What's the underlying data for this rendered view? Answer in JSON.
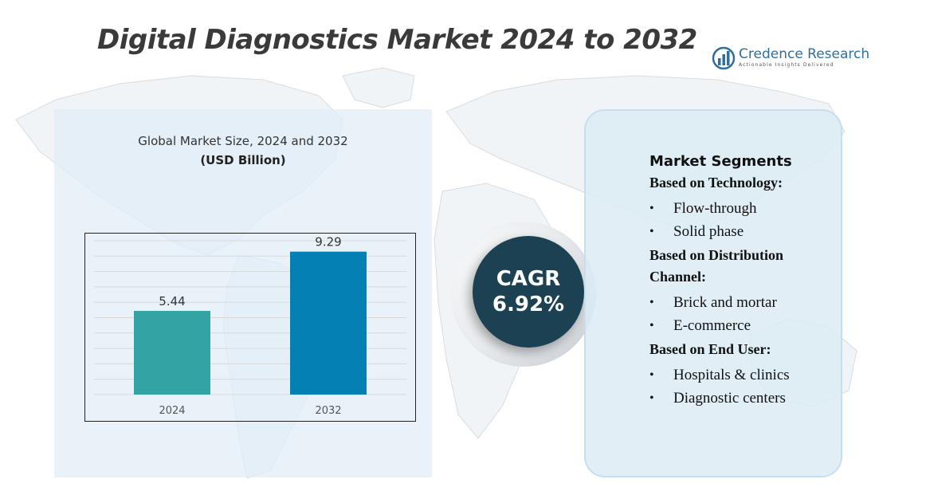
{
  "title": "Digital Diagnostics Market 2024 to 2032",
  "logo": {
    "name": "Credence Research",
    "tagline": "Actionable Insights Delivered",
    "icon": "bar-chart-logo-icon",
    "color": "#2f6f9f"
  },
  "chart_data": {
    "type": "bar",
    "title": "Global Market Size, 2024 and 2032",
    "subtitle": "(USD Billion)",
    "categories": [
      "2024",
      "2032"
    ],
    "values": [
      5.44,
      9.29
    ],
    "colors": [
      "#33a3a3",
      "#0580b4"
    ],
    "ylim": [
      0,
      10
    ],
    "grid": true,
    "legend": "none",
    "xlabel": "",
    "ylabel": ""
  },
  "cagr": {
    "label": "CAGR",
    "value": "6.92%"
  },
  "segments": {
    "title": "Market Segments",
    "groups": [
      {
        "heading": "Based on Technology:",
        "items": [
          "Flow-through",
          "Solid phase"
        ]
      },
      {
        "heading": "Based on Distribution Channel:",
        "items": [
          "Brick and mortar",
          "E-commerce"
        ]
      },
      {
        "heading": "Based on End User:",
        "items": [
          "Hospitals & clinics",
          "Diagnostic centers"
        ]
      }
    ]
  },
  "colors": {
    "panel_bg": "#e0edf6",
    "cagr_circle": "#1b4152",
    "title_text": "#3a3a3a"
  }
}
